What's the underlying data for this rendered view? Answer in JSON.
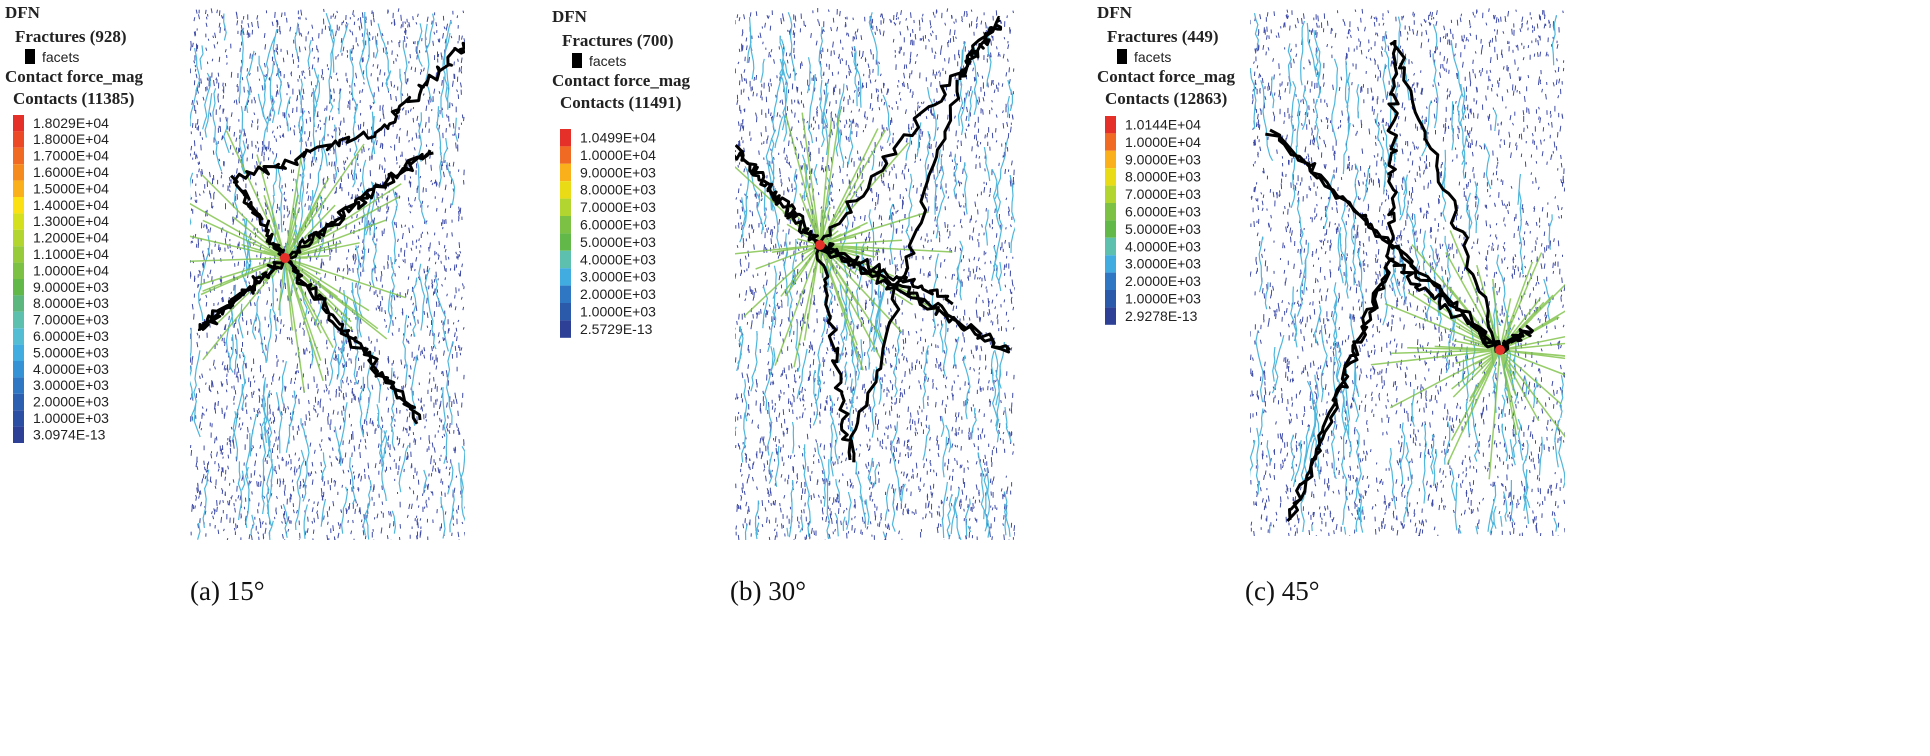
{
  "panels": [
    {
      "legend": {
        "title": "DFN",
        "fractures": "Fractures (928)",
        "facets": "facets",
        "field": "Contact force_mag",
        "contacts": "Contacts (11385)",
        "entries": [
          {
            "label": "1.8029E+04",
            "color": "#e5302a"
          },
          {
            "label": "1.8000E+04",
            "color": "#ec4a27"
          },
          {
            "label": "1.7000E+04",
            "color": "#f06a23"
          },
          {
            "label": "1.6000E+04",
            "color": "#f58a1f"
          },
          {
            "label": "1.5000E+04",
            "color": "#f9b01a"
          },
          {
            "label": "1.4000E+04",
            "color": "#fbe014"
          },
          {
            "label": "1.3000E+04",
            "color": "#d4df1e"
          },
          {
            "label": "1.2000E+04",
            "color": "#b3d530"
          },
          {
            "label": "1.1000E+04",
            "color": "#98cb3c"
          },
          {
            "label": "1.0000E+04",
            "color": "#7cc143"
          },
          {
            "label": "9.0000E+03",
            "color": "#63b84a"
          },
          {
            "label": "8.0000E+03",
            "color": "#5cb77e"
          },
          {
            "label": "7.0000E+03",
            "color": "#5dbfae"
          },
          {
            "label": "6.0000E+03",
            "color": "#55bdd3"
          },
          {
            "label": "5.0000E+03",
            "color": "#41acdf"
          },
          {
            "label": "4.0000E+03",
            "color": "#3592d5"
          },
          {
            "label": "3.0000E+03",
            "color": "#3077c3"
          },
          {
            "label": "2.0000E+03",
            "color": "#2d5fb1"
          },
          {
            "label": "1.0000E+03",
            "color": "#2c4ea3"
          },
          {
            "label": "3.0974E-13",
            "color": "#2e4096"
          }
        ]
      },
      "caption": "(a) 15°"
    },
    {
      "legend": {
        "title": "DFN",
        "fractures": "Fractures (700)",
        "facets": "facets",
        "field": "Contact force_mag",
        "contacts": "Contacts (11491)",
        "entries": [
          {
            "label": "1.0499E+04",
            "color": "#e5302a"
          },
          {
            "label": "1.0000E+04",
            "color": "#f06a23"
          },
          {
            "label": "9.0000E+03",
            "color": "#f9b01a"
          },
          {
            "label": "8.0000E+03",
            "color": "#e9dc16"
          },
          {
            "label": "7.0000E+03",
            "color": "#b3d530"
          },
          {
            "label": "6.0000E+03",
            "color": "#7cc143"
          },
          {
            "label": "5.0000E+03",
            "color": "#63b84a"
          },
          {
            "label": "4.0000E+03",
            "color": "#5dbfae"
          },
          {
            "label": "3.0000E+03",
            "color": "#41acdf"
          },
          {
            "label": "2.0000E+03",
            "color": "#3077c3"
          },
          {
            "label": "1.0000E+03",
            "color": "#2c5aab"
          },
          {
            "label": "2.5729E-13",
            "color": "#2e4096"
          }
        ]
      },
      "caption": "(b) 30°"
    },
    {
      "legend": {
        "title": "DFN",
        "fractures": "Fractures (449)",
        "facets": "facets",
        "field": "Contact force_mag",
        "contacts": "Contacts (12863)",
        "entries": [
          {
            "label": "1.0144E+04",
            "color": "#e5302a"
          },
          {
            "label": "1.0000E+04",
            "color": "#f06a23"
          },
          {
            "label": "9.0000E+03",
            "color": "#f9b01a"
          },
          {
            "label": "8.0000E+03",
            "color": "#e9dc16"
          },
          {
            "label": "7.0000E+03",
            "color": "#b3d530"
          },
          {
            "label": "6.0000E+03",
            "color": "#7cc143"
          },
          {
            "label": "5.0000E+03",
            "color": "#63b84a"
          },
          {
            "label": "4.0000E+03",
            "color": "#5dbfae"
          },
          {
            "label": "3.0000E+03",
            "color": "#41acdf"
          },
          {
            "label": "2.0000E+03",
            "color": "#3077c3"
          },
          {
            "label": "1.0000E+03",
            "color": "#2c5aab"
          },
          {
            "label": "2.9278E-13",
            "color": "#2e4096"
          }
        ]
      },
      "caption": "(c) 45°"
    }
  ]
}
